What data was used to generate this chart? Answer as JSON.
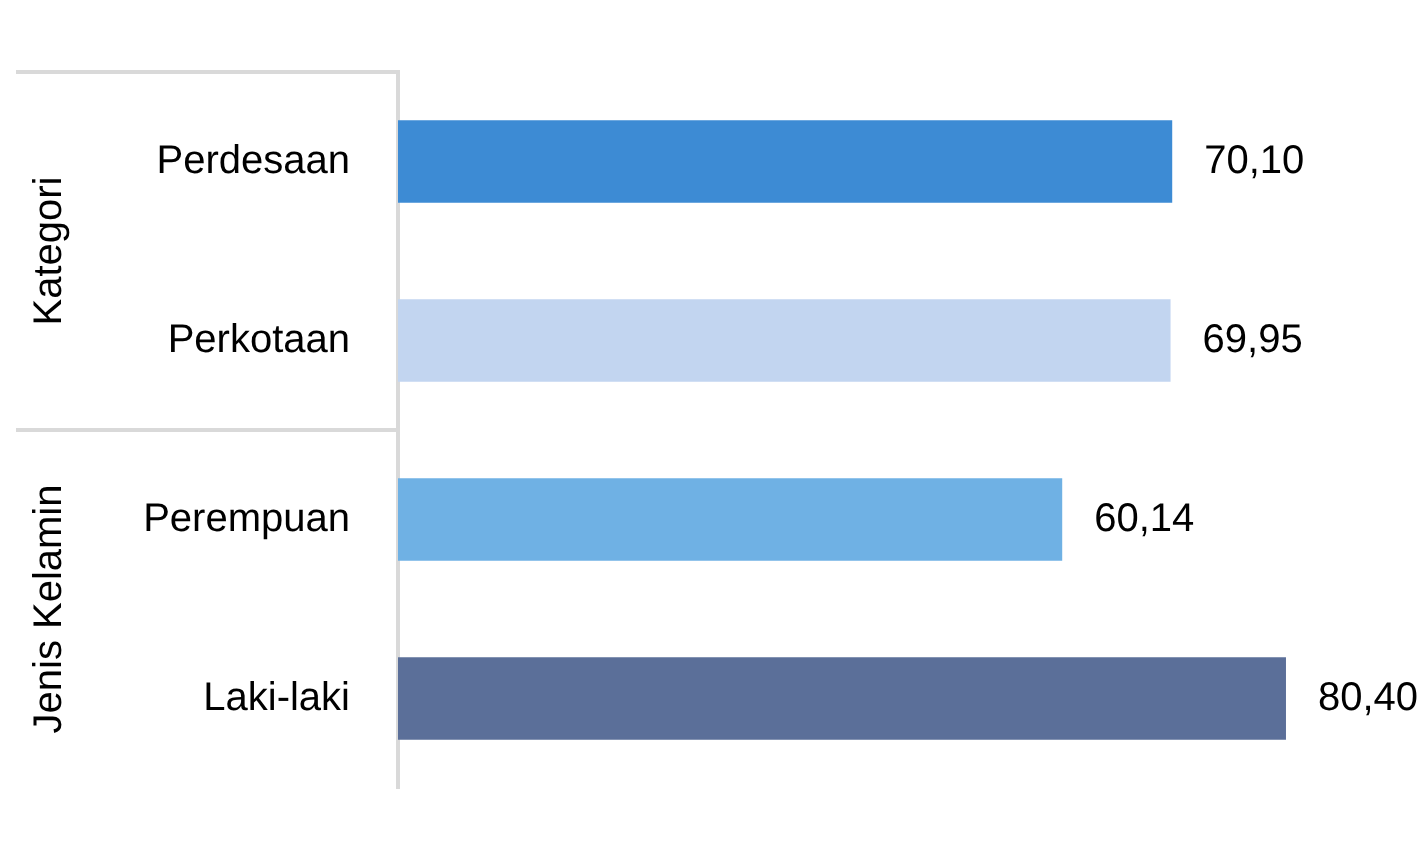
{
  "chart_data": {
    "type": "bar",
    "orientation": "horizontal",
    "categories": [
      "Perdesaan",
      "Perkotaan",
      "Perempuan",
      "Laki-laki"
    ],
    "values": [
      70.1,
      69.95,
      60.14,
      80.4
    ],
    "colors": [
      "#3d8bd4",
      "#c2d5f0",
      "#6fb1e4",
      "#5b6f99"
    ],
    "value_labels": [
      "70,10",
      "69,95",
      "60,14",
      "80,40"
    ],
    "annotations": [
      "Kategori",
      "Jenis Kelamin"
    ]
  }
}
